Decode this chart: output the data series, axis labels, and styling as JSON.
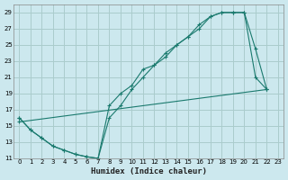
{
  "xlabel": "Humidex (Indice chaleur)",
  "bg_color": "#cce8ee",
  "grid_color": "#aacccc",
  "line_color": "#1a7a6e",
  "xlim": [
    -0.5,
    23.5
  ],
  "ylim": [
    11,
    30
  ],
  "xticks": [
    0,
    1,
    2,
    3,
    4,
    5,
    6,
    7,
    8,
    9,
    10,
    11,
    12,
    13,
    14,
    15,
    16,
    17,
    18,
    19,
    20,
    21,
    22,
    23
  ],
  "yticks": [
    11,
    13,
    15,
    17,
    19,
    21,
    23,
    25,
    27,
    29
  ],
  "curve1_x": [
    0,
    1,
    2,
    3,
    4,
    5,
    6,
    7,
    8,
    9,
    10,
    11,
    12,
    13,
    14,
    15,
    16,
    17,
    18,
    19,
    20,
    21,
    22
  ],
  "curve1_y": [
    16,
    14.5,
    13.5,
    12.5,
    12,
    11.5,
    11.2,
    11,
    17.5,
    19,
    20,
    22,
    22.5,
    24,
    25,
    26,
    27.5,
    28.5,
    29,
    29,
    29,
    24.5,
    19.5
  ],
  "curve2_x": [
    0,
    1,
    2,
    3,
    4,
    5,
    6,
    7,
    8,
    9,
    10,
    11,
    12,
    13,
    14,
    15,
    16,
    17,
    18,
    19,
    20,
    21,
    22
  ],
  "curve2_y": [
    16,
    14.5,
    13.5,
    12.5,
    12,
    11.5,
    11.2,
    11,
    16,
    17.5,
    19.5,
    21,
    22.5,
    23.5,
    25,
    26,
    27,
    28.5,
    29,
    29,
    29,
    21,
    19.5
  ],
  "curve3_x": [
    0,
    22
  ],
  "curve3_y": [
    15.5,
    19.5
  ]
}
